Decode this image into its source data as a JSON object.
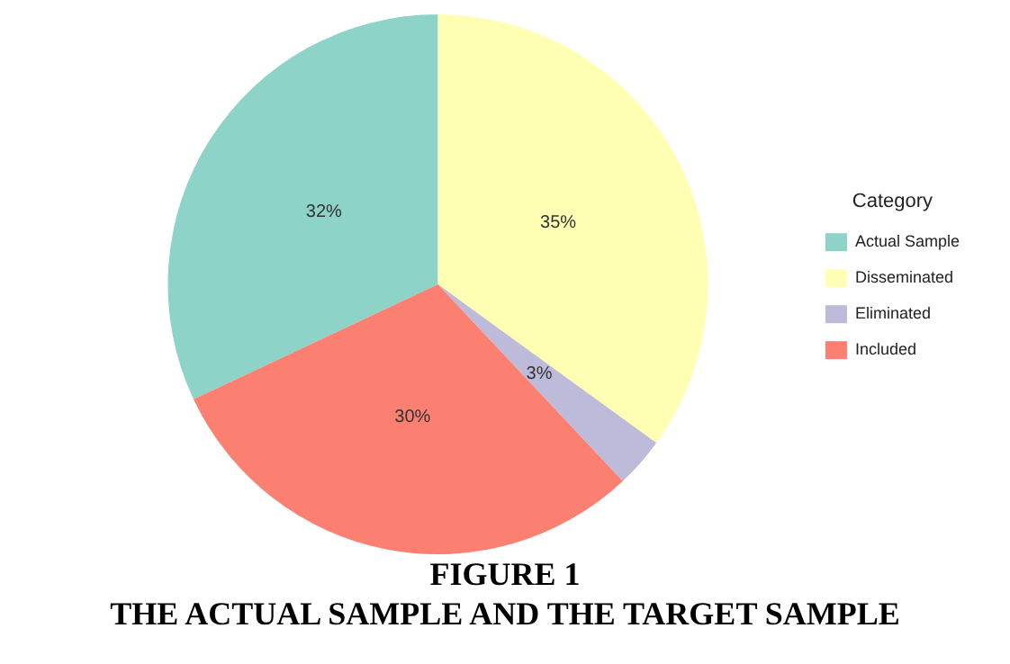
{
  "chart_data": {
    "type": "pie",
    "title": "FIGURE 1",
    "subtitle": "THE ACTUAL SAMPLE AND THE TARGET SAMPLE",
    "legend_title": "Category",
    "legend": "right",
    "categories": [
      "Actual Sample",
      "Disseminated",
      "Eliminated",
      "Included"
    ],
    "values": [
      32,
      35,
      3,
      30
    ],
    "value_labels": [
      "32%",
      "35%",
      "3%",
      "30%"
    ],
    "colors": [
      "#8dd3c7",
      "#ffffb3",
      "#bebada",
      "#fb8072"
    ]
  }
}
